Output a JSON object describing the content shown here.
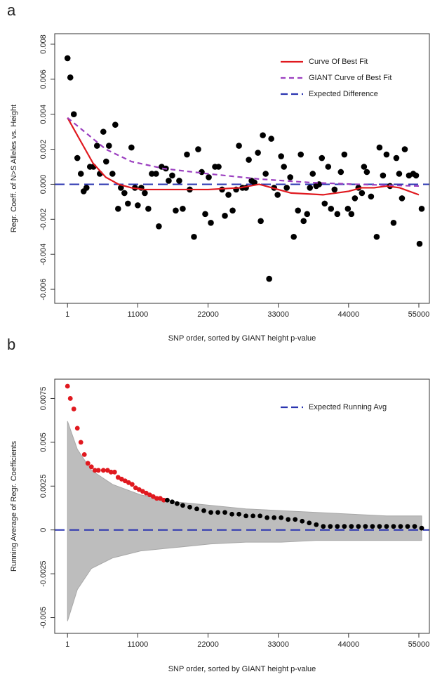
{
  "chart_data": [
    {
      "type": "scatter",
      "panel_label": "a",
      "xlabel": "SNP order, sorted by GIANT height p-value",
      "ylabel": "Regr. Coeff. of N>S Alleles vs. Height",
      "xlim": [
        -2000,
        56650
      ],
      "ylim": [
        -0.0068,
        0.0086
      ],
      "xticks": [
        1,
        11000,
        22000,
        33000,
        44000,
        55000
      ],
      "yticks": [
        -0.006,
        -0.004,
        -0.002,
        {
          "value": 0,
          "label": "0.000"
        },
        0.002,
        0.004,
        0.006,
        0.008
      ],
      "legend": "top-right",
      "points": [
        {
          "color": "#000000",
          "x": [
            1,
            440,
            990,
            1540,
            2090,
            2530,
            2970,
            3520,
            4070,
            4620,
            5060,
            5610,
            6050,
            6490,
            7040,
            7480,
            7920,
            8360,
            8910,
            9460,
            10010,
            10560,
            11000,
            11550,
            12100,
            12650,
            13200,
            13860,
            14300,
            14740,
            15400,
            15840,
            16390,
            16940,
            17490,
            18040,
            18700,
            19140,
            19800,
            20460,
            21010,
            21560,
            22110,
            22440,
            23100,
            23650,
            24200,
            24640,
            25190,
            25850,
            26400,
            26840,
            27390,
            27940,
            28380,
            28820,
            29260,
            29810,
            30250,
            30580,
            31020,
            31570,
            31900,
            32340,
            32890,
            33440,
            33880,
            34320,
            34870,
            35420,
            36080,
            36520,
            36960,
            37510,
            37950,
            38390,
            38940,
            39380,
            39820,
            40260,
            40810,
            41250,
            41800,
            42240,
            42790,
            43340,
            43890,
            44440,
            44990,
            45540,
            46090,
            46420,
            46860,
            47520,
            48400,
            48840,
            49390,
            49940,
            50490,
            51040,
            51480,
            51920,
            52360,
            52800,
            53460,
            54120,
            54560,
            55110,
            55440
          ],
          "values": [
            0.0072,
            0.0061,
            0.004,
            0.0015,
            0.0006,
            -0.0004,
            -0.0002,
            0.001,
            0.001,
            0.0022,
            0.0006,
            0.003,
            0.0013,
            0.0022,
            0.0006,
            0.0034,
            -0.0014,
            -0.0002,
            -0.0005,
            -0.0011,
            0.0021,
            -0.0002,
            -0.0012,
            -0.0002,
            -0.0005,
            -0.0014,
            0.0006,
            0.0006,
            -0.0024,
            0.001,
            0.0009,
            0.0002,
            0.0005,
            -0.0015,
            0.0002,
            -0.0014,
            0.0017,
            -0.0003,
            -0.003,
            0.002,
            0.0007,
            -0.0017,
            0.0004,
            -0.0022,
            0.001,
            0.001,
            -0.0003,
            -0.0018,
            -0.0006,
            -0.0015,
            -0.0003,
            0.0022,
            -0.0002,
            -0.0002,
            0.0014,
            0.0002,
            0.0001,
            0.0018,
            -0.0021,
            0.0028,
            0.0006,
            -0.0054,
            0.0026,
            -0.0002,
            -0.0006,
            0.0016,
            0.001,
            -0.0002,
            0.0004,
            -0.003,
            -0.0015,
            0.0017,
            -0.0021,
            -0.0017,
            -0.0002,
            0.0006,
            -0.0001,
            0,
            0.0015,
            -0.0011,
            0.001,
            -0.0014,
            -0.0003,
            -0.0017,
            0.0007,
            0.0017,
            -0.0014,
            -0.0017,
            -0.0008,
            -0.0002,
            -0.0005,
            0.001,
            0.0007,
            -0.0007,
            -0.003,
            0.0021,
            0.0005,
            0.0017,
            -0.0001,
            -0.0022,
            0.0015,
            0.0006,
            -0.0008,
            0.002,
            0.0005,
            0.0006,
            0.0005,
            -0.0034,
            -0.0014
          ]
        }
      ],
      "lines": [
        {
          "name": "Curve Of Best Fit",
          "color": "#e0191f",
          "style": "solid",
          "x": [
            1,
            2000,
            4000,
            6000,
            8000,
            10000,
            12000,
            16000,
            22000,
            27000,
            30000,
            32000,
            35000,
            40000,
            44000,
            46000,
            48000,
            50000,
            52000,
            55000
          ],
          "values": [
            0.0038,
            0.0025,
            0.0012,
            0.0004,
            0,
            -0.0002,
            -0.0003,
            -0.0003,
            -0.0003,
            -0.0002,
            0,
            -0.0002,
            -0.0005,
            -0.0006,
            -0.0004,
            -0.0002,
            -0.0002,
            -0.0001,
            -0.0002,
            -0.0006
          ]
        },
        {
          "name": "GIANT Curve of Best Fit",
          "color": "#9b3fc0",
          "style": "dashed",
          "x": [
            1,
            3000,
            6000,
            10000,
            15000,
            22000,
            30000,
            38000,
            45000,
            55000
          ],
          "values": [
            0.0038,
            0.0029,
            0.002,
            0.0013,
            0.0009,
            0.0006,
            0.0003,
            0.0001,
            0,
            -0.0001
          ]
        }
      ],
      "hlines": [
        {
          "name": "Expected Difference",
          "color": "#2b35b0",
          "value": 0
        }
      ]
    },
    {
      "type": "scatter",
      "panel_label": "b",
      "xlabel": "SNP order, sorted by GIANT height p-value",
      "ylabel": "Running Average of Regr. Coefficients",
      "xlim": [
        -2000,
        56650
      ],
      "ylim": [
        -0.0059,
        0.0086
      ],
      "xticks": [
        1,
        11000,
        22000,
        33000,
        44000,
        55000
      ],
      "yticks": [
        -0.005,
        -0.0025,
        0,
        0.0025,
        0.005,
        0.0075
      ],
      "legend": "top-right",
      "band": {
        "color": "#bdbdbd",
        "x": [
          1,
          1540,
          3740,
          7040,
          11440,
          16940,
          22440,
          27940,
          33440,
          38940,
          44440,
          49940,
          55440
        ],
        "upper": [
          0.0062,
          0.0046,
          0.0034,
          0.0026,
          0.002,
          0.0016,
          0.0014,
          0.0012,
          0.0011,
          0.001,
          0.0009,
          0.0008,
          0.0008
        ],
        "lower": [
          -0.0052,
          -0.0034,
          -0.0022,
          -0.0016,
          -0.0012,
          -0.001,
          -0.0008,
          -0.0007,
          -0.0007,
          -0.0006,
          -0.0006,
          -0.0006,
          -0.0006
        ]
      },
      "points": [
        {
          "color": "#e0191f",
          "x": [
            1,
            440,
            990,
            1540,
            2090,
            2640,
            3190,
            3740,
            4290,
            4840,
            5610,
            6270,
            6820,
            7370,
            7920,
            8470,
            9020,
            9570,
            10120,
            10670,
            11220,
            11770,
            12320,
            12870,
            13420,
            13970,
            14520,
            15070
          ],
          "values": [
            0.0082,
            0.0075,
            0.0069,
            0.0058,
            0.005,
            0.0043,
            0.0038,
            0.0036,
            0.0034,
            0.0034,
            0.0034,
            0.0034,
            0.0033,
            0.0033,
            0.003,
            0.0029,
            0.0028,
            0.0027,
            0.0026,
            0.0024,
            0.0023,
            0.0022,
            0.0021,
            0.002,
            0.0019,
            0.0018,
            0.0018,
            0.0017
          ]
        },
        {
          "color": "#000000",
          "x": [
            15620,
            16390,
            17160,
            18040,
            19140,
            20240,
            21340,
            22440,
            23540,
            24640,
            25740,
            26840,
            27940,
            29040,
            30140,
            31240,
            32340,
            33440,
            34540,
            35640,
            36740,
            37840,
            38940,
            40040,
            41140,
            42240,
            43340,
            44440,
            45540,
            46640,
            47740,
            48840,
            49940,
            51040,
            52140,
            53240,
            54340,
            55440
          ],
          "values": [
            0.0017,
            0.0016,
            0.0015,
            0.0014,
            0.0013,
            0.0012,
            0.0011,
            0.001,
            0.001,
            0.001,
            0.0009,
            0.0009,
            0.0008,
            0.0008,
            0.0008,
            0.0007,
            0.0007,
            0.0007,
            0.0006,
            0.0006,
            0.0005,
            0.0004,
            0.0003,
            0.0002,
            0.0002,
            0.0002,
            0.0002,
            0.0002,
            0.0002,
            0.0002,
            0.0002,
            0.0002,
            0.0002,
            0.0002,
            0.0002,
            0.0002,
            0.0002,
            0.0001
          ]
        }
      ],
      "lines": [],
      "hlines": [
        {
          "name": "Expected Running Avg",
          "color": "#2b35b0",
          "value": 0
        }
      ]
    }
  ]
}
